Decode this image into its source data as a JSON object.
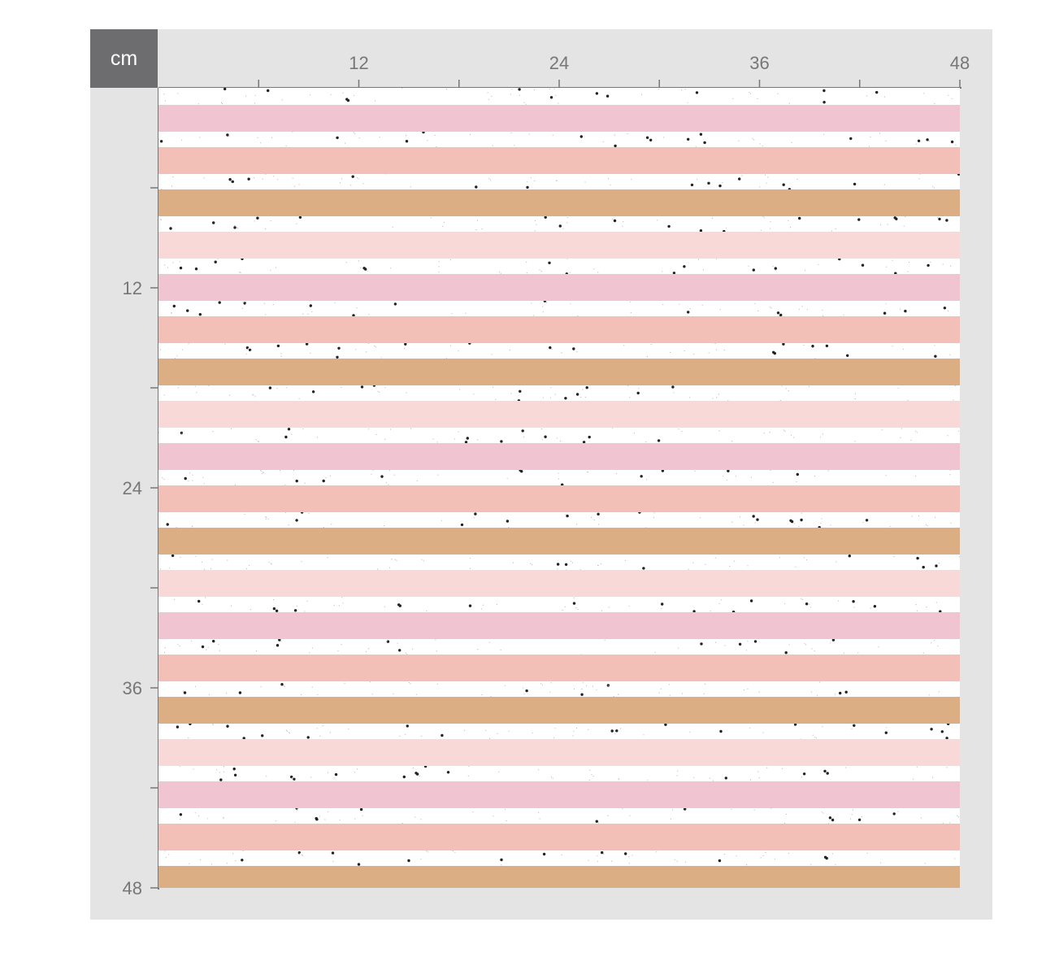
{
  "ruler": {
    "unit": "cm",
    "max_value": 48,
    "labeled_ticks": [
      12,
      24,
      36,
      48
    ],
    "minor_step": 6
  },
  "pattern": {
    "name": "horizontal-stripes-with-speckles",
    "stripe_colors": [
      "#f0c4d0",
      "#f3c0b8",
      "#dcae84",
      "#f8d9d7"
    ],
    "background_color": "#ffffff",
    "speckle_color": "#222222",
    "stripe_count": 19
  }
}
